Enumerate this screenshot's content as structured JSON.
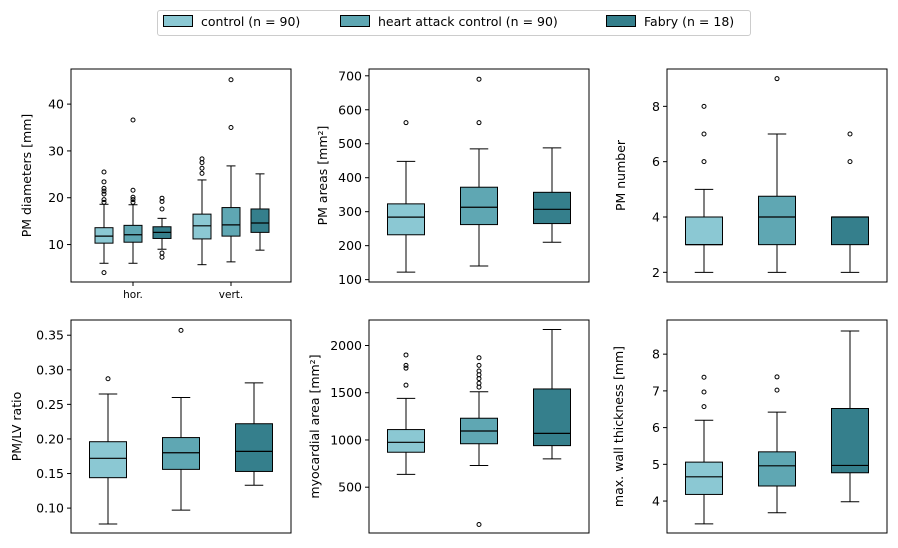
{
  "legend": {
    "items": [
      {
        "label": "control (n = 90)",
        "color": "#8bc8d3"
      },
      {
        "label": "heart attack control (n = 90)",
        "color": "#5fa7b3"
      },
      {
        "label": "Fabry (n = 18)",
        "color": "#357f8c"
      }
    ]
  },
  "chart_data": [
    {
      "type": "box",
      "ylabel": "PM diameters [mm]",
      "ylim": [
        2,
        47.5
      ],
      "yticks": [
        10,
        20,
        30,
        40
      ],
      "group_labels": [
        "hor.",
        "vert."
      ],
      "boxes": [
        {
          "series": 0,
          "q1": 10.3,
          "median": 11.8,
          "q3": 13.6,
          "whislo": 6,
          "whishi": 18.6,
          "fliers": [
            4,
            19,
            19.6,
            20.8,
            21.4,
            22,
            23.4,
            25.5
          ]
        },
        {
          "series": 1,
          "q1": 10.5,
          "median": 12.1,
          "q3": 14.1,
          "whislo": 6,
          "whishi": 18.5,
          "fliers": [
            19,
            19.6,
            20.1,
            21.6,
            36.6
          ]
        },
        {
          "series": 2,
          "q1": 11.3,
          "median": 12.6,
          "q3": 13.8,
          "whislo": 9,
          "whishi": 15.6,
          "fliers": [
            7.3,
            8.2,
            17.6,
            19.2,
            19.9
          ]
        },
        {
          "series": 0,
          "q1": 11.2,
          "median": 14,
          "q3": 16.5,
          "whislo": 5.7,
          "whishi": 23.8,
          "fliers": [
            25.2,
            26.3,
            27.5,
            28.3
          ]
        },
        {
          "series": 1,
          "q1": 11.8,
          "median": 14.2,
          "q3": 17.9,
          "whislo": 6.3,
          "whishi": 26.8,
          "fliers": [
            35,
            45.2
          ]
        },
        {
          "series": 2,
          "q1": 12.6,
          "median": 14.6,
          "q3": 17.6,
          "whislo": 8.8,
          "whishi": 25.1,
          "fliers": []
        }
      ]
    },
    {
      "type": "box",
      "ylabel": "PM areas [mm²]",
      "ylim": [
        93,
        720
      ],
      "yticks": [
        100,
        200,
        300,
        400,
        500,
        600,
        700
      ],
      "group_labels": [],
      "boxes": [
        {
          "series": 0,
          "q1": 232,
          "median": 284,
          "q3": 323,
          "whislo": 122,
          "whishi": 448,
          "fliers": [
            562
          ]
        },
        {
          "series": 1,
          "q1": 262,
          "median": 313,
          "q3": 372,
          "whislo": 140,
          "whishi": 485,
          "fliers": [
            562,
            690
          ]
        },
        {
          "series": 2,
          "q1": 265,
          "median": 307,
          "q3": 357,
          "whislo": 210,
          "whishi": 488,
          "fliers": []
        }
      ]
    },
    {
      "type": "box",
      "ylabel": "PM number",
      "ylim": [
        1.65,
        9.35
      ],
      "yticks": [
        2,
        4,
        6,
        8
      ],
      "group_labels": [],
      "boxes": [
        {
          "series": 0,
          "q1": 3,
          "median": 3,
          "q3": 4,
          "whislo": 2,
          "whishi": 5,
          "fliers": [
            6,
            7,
            8
          ]
        },
        {
          "series": 1,
          "q1": 3,
          "median": 4,
          "q3": 4.75,
          "whislo": 2,
          "whishi": 7,
          "fliers": [
            9
          ]
        },
        {
          "series": 2,
          "q1": 3,
          "median": 4,
          "q3": 4,
          "whislo": 2,
          "whishi": 4,
          "fliers": [
            6,
            7
          ]
        }
      ]
    },
    {
      "type": "box",
      "ylabel": "PM/LV ratio",
      "ylim": [
        0.064,
        0.372
      ],
      "yticks": [
        0.1,
        0.15,
        0.2,
        0.25,
        0.3,
        0.35
      ],
      "tick_labels": [
        "0.10",
        "0.15",
        "0.20",
        "0.25",
        "0.30",
        "0.35"
      ],
      "group_labels": [],
      "boxes": [
        {
          "series": 0,
          "q1": 0.144,
          "median": 0.172,
          "q3": 0.196,
          "whislo": 0.077,
          "whishi": 0.265,
          "fliers": [
            0.287
          ]
        },
        {
          "series": 1,
          "q1": 0.156,
          "median": 0.18,
          "q3": 0.202,
          "whislo": 0.097,
          "whishi": 0.26,
          "fliers": [
            0.357
          ]
        },
        {
          "series": 2,
          "q1": 0.153,
          "median": 0.182,
          "q3": 0.222,
          "whislo": 0.133,
          "whishi": 0.281,
          "fliers": []
        }
      ]
    },
    {
      "type": "box",
      "ylabel": "myocardial area [mm²]",
      "ylim": [
        15,
        2270
      ],
      "yticks": [
        500,
        1000,
        1500,
        2000
      ],
      "group_labels": [],
      "boxes": [
        {
          "series": 0,
          "q1": 870,
          "median": 975,
          "q3": 1110,
          "whislo": 635,
          "whishi": 1440,
          "fliers": [
            1580,
            1760,
            1790,
            1900
          ]
        },
        {
          "series": 1,
          "q1": 960,
          "median": 1095,
          "q3": 1230,
          "whislo": 730,
          "whishi": 1510,
          "fliers": [
            105,
            1560,
            1600,
            1650,
            1690,
            1730,
            1790,
            1870
          ]
        },
        {
          "series": 2,
          "q1": 940,
          "median": 1070,
          "q3": 1540,
          "whislo": 800,
          "whishi": 2170,
          "fliers": []
        }
      ]
    },
    {
      "type": "box",
      "ylabel": "max. wall thickness [mm]",
      "ylim": [
        3.13,
        8.93
      ],
      "yticks": [
        4,
        5,
        6,
        7,
        8
      ],
      "group_labels": [],
      "boxes": [
        {
          "series": 0,
          "q1": 4.18,
          "median": 4.66,
          "q3": 5.06,
          "whislo": 3.38,
          "whishi": 6.2,
          "fliers": [
            6.57,
            6.97,
            7.37
          ]
        },
        {
          "series": 1,
          "q1": 4.41,
          "median": 4.96,
          "q3": 5.34,
          "whislo": 3.68,
          "whishi": 6.42,
          "fliers": [
            7.02,
            7.38
          ]
        },
        {
          "series": 2,
          "q1": 4.77,
          "median": 4.97,
          "q3": 6.52,
          "whislo": 3.98,
          "whishi": 8.63,
          "fliers": []
        }
      ]
    }
  ]
}
